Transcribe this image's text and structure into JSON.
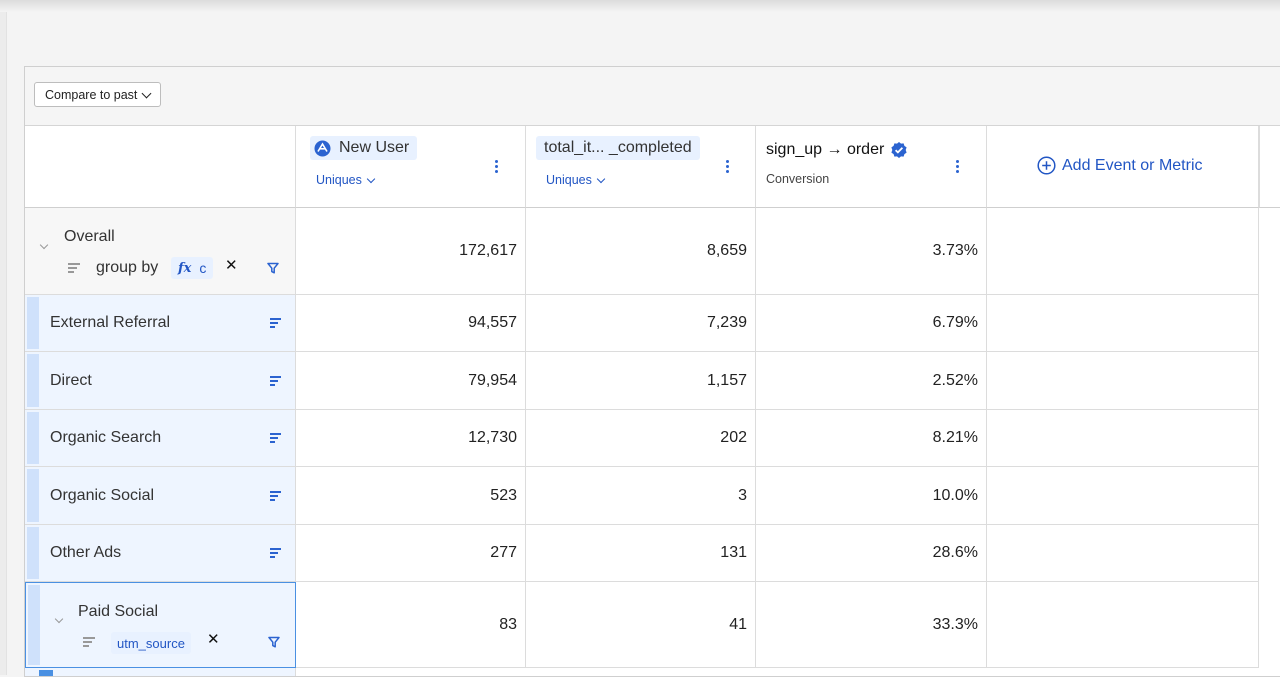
{
  "toolbar": {
    "compare_label": "Compare to past"
  },
  "columns": [
    {
      "name": "New User",
      "measure": "Uniques",
      "icon": "new-user-icon"
    },
    {
      "name": "total_it... _completed",
      "measure": "Uniques"
    },
    {
      "name": "sign_up → order",
      "measure": "Conversion",
      "icon": "verified-check-icon"
    }
  ],
  "add_metric_label": "Add Event or Metric",
  "overall": {
    "label": "Overall",
    "group_by_label": "group by",
    "group_by_chip": "c",
    "fx_symbol": "fx",
    "values": [
      "172,617",
      "8,659",
      "3.73%"
    ]
  },
  "rows": [
    {
      "label": "External Referral",
      "values": [
        "94,557",
        "7,239",
        "6.79%"
      ]
    },
    {
      "label": "Direct",
      "values": [
        "79,954",
        "1,157",
        "2.52%"
      ]
    },
    {
      "label": "Organic Search",
      "values": [
        "12,730",
        "202",
        "8.21%"
      ]
    },
    {
      "label": "Organic Social",
      "values": [
        "523",
        "3",
        "10.0%"
      ]
    },
    {
      "label": "Other Ads",
      "values": [
        "277",
        "131",
        "28.6%"
      ]
    }
  ],
  "paid_social": {
    "label": "Paid Social",
    "chip": "utm_source",
    "values": [
      "83",
      "41",
      "33.3%"
    ]
  },
  "colors": {
    "accent": "#2b63d0",
    "row_tint": "#eef5ff",
    "row_bar": "#cfe1fb",
    "chip_bg": "#e8f1ff"
  }
}
